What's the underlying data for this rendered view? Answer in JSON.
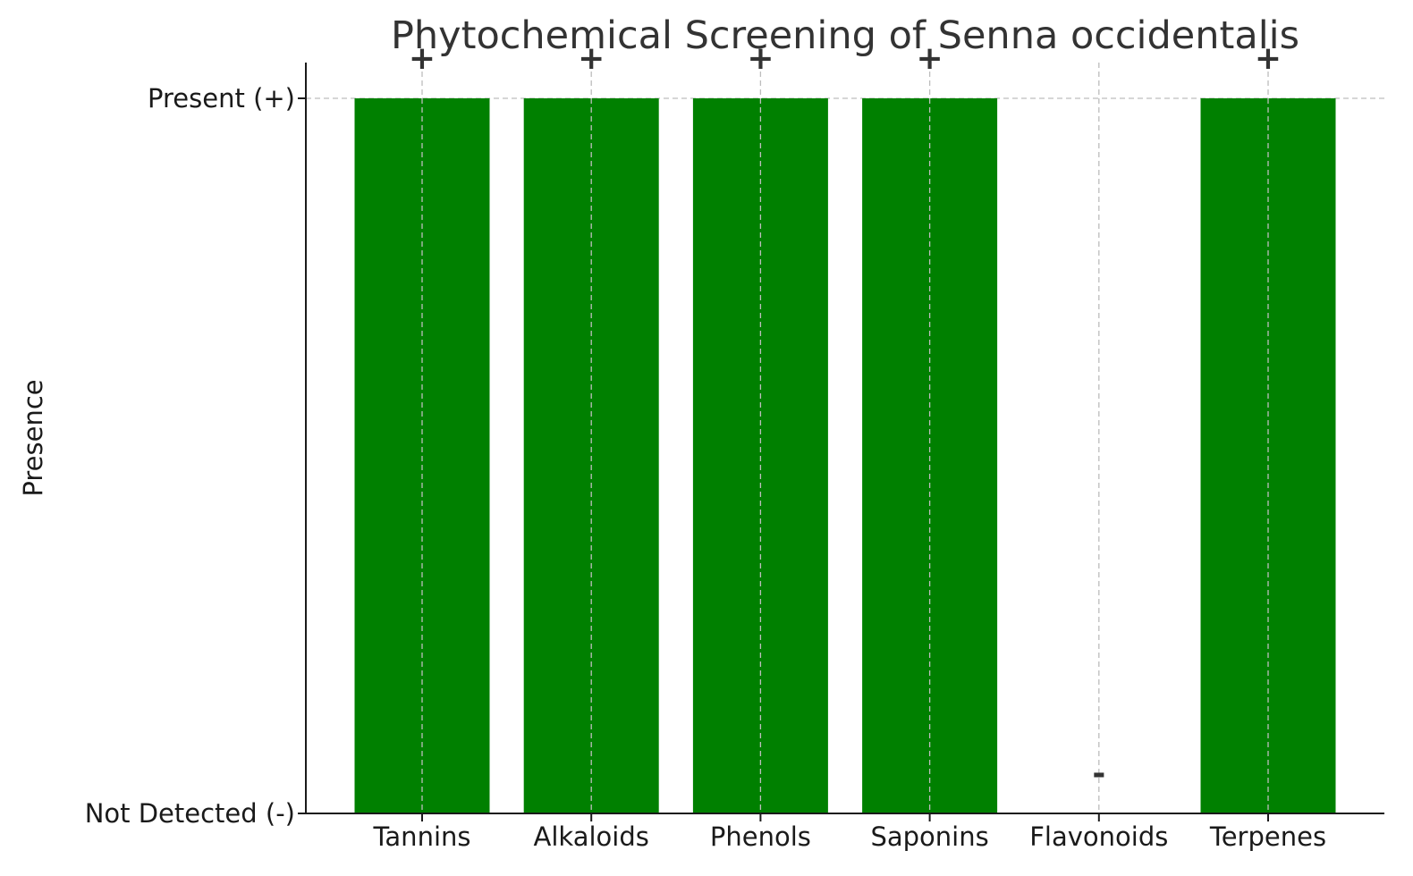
{
  "chart_data": {
    "type": "bar",
    "title": "Phytochemical Screening of Senna occidentalis",
    "xlabel": "",
    "ylabel": "Presence",
    "categories": [
      "Tannins",
      "Alkaloids",
      "Phenols",
      "Saponins",
      "Flavonoids",
      "Terpenes"
    ],
    "values": [
      1,
      1,
      1,
      1,
      0,
      1
    ],
    "data_labels": [
      "+",
      "+",
      "+",
      "+",
      "-",
      "+"
    ],
    "ylim": [
      0,
      1.05
    ],
    "yticks": [
      {
        "value": 0,
        "label": "Not Detected (-)"
      },
      {
        "value": 1,
        "label": "Present (+)"
      }
    ],
    "bar_color": "#008000",
    "grid": true,
    "legend": "none"
  }
}
